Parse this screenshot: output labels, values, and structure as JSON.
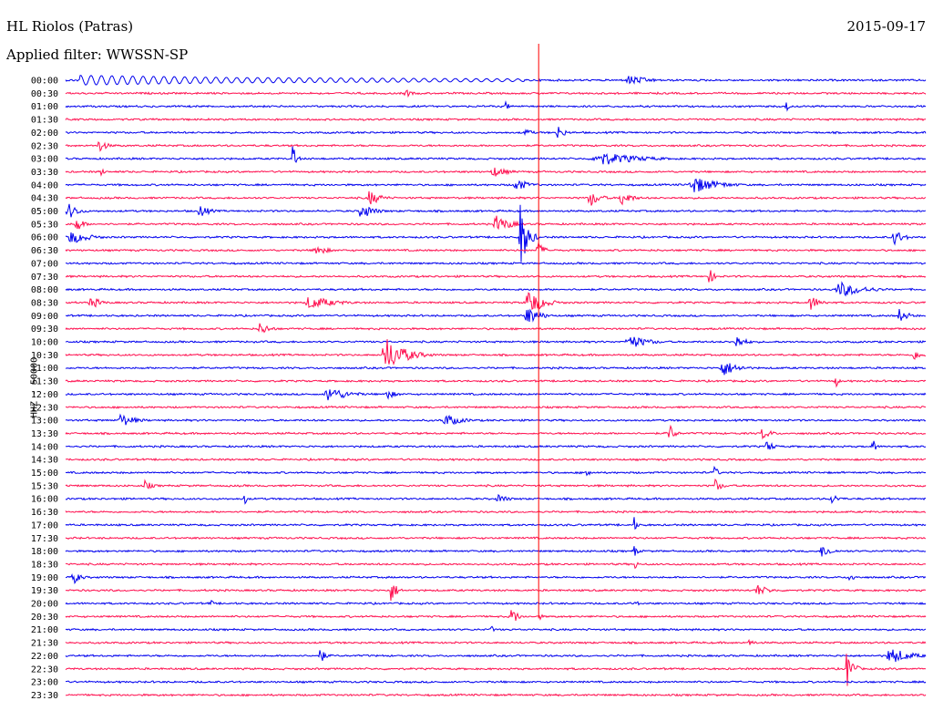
{
  "header": {
    "station": "HL Riolos (Patras)",
    "date": "2015-09-17",
    "filter_label": "Applied filter: WWSSN-SP",
    "channel": "HHZ - 50000"
  },
  "chart_data": {
    "type": "line",
    "title": "HL Riolos (Patras)",
    "subtitle": "Applied filter: WWSSN-SP",
    "ylabel": "HHZ - 50000",
    "xlabel": "",
    "row_labels": [
      "00:00",
      "00:30",
      "01:00",
      "01:30",
      "02:00",
      "02:30",
      "03:00",
      "03:30",
      "04:00",
      "04:30",
      "05:00",
      "05:30",
      "06:00",
      "06:30",
      "07:00",
      "07:30",
      "08:00",
      "08:30",
      "09:00",
      "09:30",
      "10:00",
      "10:30",
      "11:00",
      "11:30",
      "12:00",
      "12:30",
      "13:00",
      "13:30",
      "14:00",
      "14:30",
      "15:00",
      "15:30",
      "16:00",
      "16:30",
      "17:00",
      "17:30",
      "18:00",
      "18:30",
      "19:00",
      "19:30",
      "20:00",
      "20:30",
      "21:00",
      "21:30",
      "22:00",
      "22:30",
      "23:00",
      "23:30"
    ],
    "row_colors": [
      "#0000ee",
      "#ff0f4f"
    ],
    "marker_color": "#ff0000",
    "marker_minute": 16.5,
    "marker_rows": [
      0,
      41
    ],
    "grid": false,
    "legend": "none",
    "events": [
      {
        "row": 0,
        "minute": 0.5,
        "duration": 6,
        "amp": 9,
        "type": "wave"
      },
      {
        "row": 0,
        "minute": 6,
        "duration": 10,
        "amp": 5,
        "type": "wave"
      },
      {
        "row": 0,
        "minute": 5.3,
        "duration": 0.5,
        "amp": 7,
        "type": "burst"
      },
      {
        "row": 0,
        "minute": 19.5,
        "duration": 2,
        "amp": 6,
        "type": "burst"
      },
      {
        "row": 1,
        "minute": 11.8,
        "duration": 0.7,
        "amp": 5,
        "type": "burst"
      },
      {
        "row": 2,
        "minute": 15.3,
        "duration": 0.4,
        "amp": 6,
        "type": "burst"
      },
      {
        "row": 2,
        "minute": 25.1,
        "duration": 0.3,
        "amp": 8,
        "type": "burst"
      },
      {
        "row": 4,
        "minute": 16,
        "duration": 0.5,
        "amp": 8,
        "type": "burst"
      },
      {
        "row": 4,
        "minute": 17.1,
        "duration": 0.7,
        "amp": 9,
        "type": "burst"
      },
      {
        "row": 5,
        "minute": 1.1,
        "duration": 0.8,
        "amp": 8,
        "type": "burst"
      },
      {
        "row": 6,
        "minute": 7.9,
        "duration": 0.3,
        "amp": 26,
        "type": "burst"
      },
      {
        "row": 6,
        "minute": 18.3,
        "duration": 4,
        "amp": 8,
        "type": "burst"
      },
      {
        "row": 7,
        "minute": 1.2,
        "duration": 0.4,
        "amp": 5,
        "type": "burst"
      },
      {
        "row": 7,
        "minute": 14.8,
        "duration": 1.5,
        "amp": 6,
        "type": "burst"
      },
      {
        "row": 8,
        "minute": 15.6,
        "duration": 1.2,
        "amp": 8,
        "type": "burst"
      },
      {
        "row": 8,
        "minute": 21.7,
        "duration": 2.5,
        "amp": 10,
        "type": "burst"
      },
      {
        "row": 9,
        "minute": 10.5,
        "duration": 1.2,
        "amp": 9,
        "type": "burst"
      },
      {
        "row": 9,
        "minute": 18.2,
        "duration": 1,
        "amp": 11,
        "type": "burst"
      },
      {
        "row": 9,
        "minute": 19.3,
        "duration": 1,
        "amp": 10,
        "type": "burst"
      },
      {
        "row": 10,
        "minute": 0,
        "duration": 1,
        "amp": 10,
        "type": "burst"
      },
      {
        "row": 10,
        "minute": 10.2,
        "duration": 1.3,
        "amp": 10,
        "type": "burst"
      },
      {
        "row": 10,
        "minute": 4.6,
        "duration": 1,
        "amp": 8,
        "type": "burst"
      },
      {
        "row": 11,
        "minute": 0.3,
        "duration": 0.7,
        "amp": 10,
        "type": "burst"
      },
      {
        "row": 11,
        "minute": 14.9,
        "duration": 1.5,
        "amp": 10,
        "type": "burst"
      },
      {
        "row": 12,
        "minute": 0,
        "duration": 2,
        "amp": 8,
        "type": "burst"
      },
      {
        "row": 12,
        "minute": 15.8,
        "duration": 0.7,
        "amp": 40,
        "type": "burst"
      },
      {
        "row": 12,
        "minute": 28.8,
        "duration": 1,
        "amp": 10,
        "type": "burst"
      },
      {
        "row": 13,
        "minute": 16.4,
        "duration": 0.7,
        "amp": 10,
        "type": "burst"
      },
      {
        "row": 13,
        "minute": 8.6,
        "duration": 1.2,
        "amp": 7,
        "type": "burst"
      },
      {
        "row": 15,
        "minute": 22.4,
        "duration": 0.5,
        "amp": 10,
        "type": "burst"
      },
      {
        "row": 16,
        "minute": 26.8,
        "duration": 2.5,
        "amp": 9,
        "type": "burst"
      },
      {
        "row": 17,
        "minute": 16,
        "duration": 1.5,
        "amp": 16,
        "type": "burst"
      },
      {
        "row": 17,
        "minute": 0.8,
        "duration": 1,
        "amp": 8,
        "type": "burst"
      },
      {
        "row": 17,
        "minute": 8.3,
        "duration": 2.5,
        "amp": 8,
        "type": "burst"
      },
      {
        "row": 17,
        "minute": 25.9,
        "duration": 1,
        "amp": 9,
        "type": "burst"
      },
      {
        "row": 18,
        "minute": 16,
        "duration": 1.2,
        "amp": 12,
        "type": "burst"
      },
      {
        "row": 18,
        "minute": 29,
        "duration": 1,
        "amp": 8,
        "type": "burst"
      },
      {
        "row": 19,
        "minute": 6.7,
        "duration": 1,
        "amp": 8,
        "type": "burst"
      },
      {
        "row": 20,
        "minute": 19.5,
        "duration": 2,
        "amp": 8,
        "type": "burst"
      },
      {
        "row": 20,
        "minute": 23.3,
        "duration": 1,
        "amp": 8,
        "type": "burst"
      },
      {
        "row": 21,
        "minute": 11,
        "duration": 2,
        "amp": 20,
        "type": "burst"
      },
      {
        "row": 21,
        "minute": 29.5,
        "duration": 1,
        "amp": 6,
        "type": "burst"
      },
      {
        "row": 22,
        "minute": 22.8,
        "duration": 1.5,
        "amp": 10,
        "type": "burst"
      },
      {
        "row": 23,
        "minute": 26.8,
        "duration": 0.3,
        "amp": 12,
        "type": "burst"
      },
      {
        "row": 24,
        "minute": 9,
        "duration": 2,
        "amp": 9,
        "type": "burst"
      },
      {
        "row": 24,
        "minute": 11.1,
        "duration": 1,
        "amp": 6,
        "type": "burst"
      },
      {
        "row": 26,
        "minute": 1.8,
        "duration": 1.5,
        "amp": 8,
        "type": "burst"
      },
      {
        "row": 26,
        "minute": 13.1,
        "duration": 1.8,
        "amp": 7,
        "type": "burst"
      },
      {
        "row": 27,
        "minute": 21,
        "duration": 0.5,
        "amp": 14,
        "type": "burst"
      },
      {
        "row": 27,
        "minute": 24.2,
        "duration": 1,
        "amp": 7,
        "type": "burst"
      },
      {
        "row": 28,
        "minute": 24.4,
        "duration": 0.6,
        "amp": 9,
        "type": "burst"
      },
      {
        "row": 28,
        "minute": 28.1,
        "duration": 0.3,
        "amp": 14,
        "type": "burst"
      },
      {
        "row": 30,
        "minute": 18.1,
        "duration": 0.5,
        "amp": 7,
        "type": "burst"
      },
      {
        "row": 30,
        "minute": 22.6,
        "duration": 0.3,
        "amp": 12,
        "type": "burst"
      },
      {
        "row": 31,
        "minute": 2.7,
        "duration": 0.8,
        "amp": 6,
        "type": "burst"
      },
      {
        "row": 31,
        "minute": 22.6,
        "duration": 0.7,
        "amp": 8,
        "type": "burst"
      },
      {
        "row": 32,
        "minute": 6.2,
        "duration": 0.3,
        "amp": 8,
        "type": "burst"
      },
      {
        "row": 32,
        "minute": 15,
        "duration": 1,
        "amp": 6,
        "type": "burst"
      },
      {
        "row": 32,
        "minute": 26.6,
        "duration": 1,
        "amp": 6,
        "type": "burst"
      },
      {
        "row": 34,
        "minute": 19.8,
        "duration": 0.3,
        "amp": 10,
        "type": "burst"
      },
      {
        "row": 36,
        "minute": 19.8,
        "duration": 0.3,
        "amp": 10,
        "type": "burst"
      },
      {
        "row": 36,
        "minute": 26.3,
        "duration": 1,
        "amp": 8,
        "type": "burst"
      },
      {
        "row": 37,
        "minute": 19.8,
        "duration": 0.3,
        "amp": 9,
        "type": "burst"
      },
      {
        "row": 38,
        "minute": 0.2,
        "duration": 0.8,
        "amp": 8,
        "type": "burst"
      },
      {
        "row": 38,
        "minute": 27.3,
        "duration": 0.5,
        "amp": 7,
        "type": "burst"
      },
      {
        "row": 39,
        "minute": 11.3,
        "duration": 0.6,
        "amp": 14,
        "type": "burst"
      },
      {
        "row": 39,
        "minute": 24,
        "duration": 1.3,
        "amp": 7,
        "type": "burst"
      },
      {
        "row": 40,
        "minute": 19.8,
        "duration": 0.3,
        "amp": 9,
        "type": "burst"
      },
      {
        "row": 40,
        "minute": 5,
        "duration": 0.4,
        "amp": 5,
        "type": "burst"
      },
      {
        "row": 41,
        "minute": 15.5,
        "duration": 0.6,
        "amp": 12,
        "type": "burst"
      },
      {
        "row": 41,
        "minute": 16.5,
        "duration": 0.3,
        "amp": 5,
        "type": "burst"
      },
      {
        "row": 42,
        "minute": 14.8,
        "duration": 0.3,
        "amp": 6,
        "type": "burst"
      },
      {
        "row": 43,
        "minute": 23.8,
        "duration": 0.5,
        "amp": 6,
        "type": "burst"
      },
      {
        "row": 44,
        "minute": 8.8,
        "duration": 0.6,
        "amp": 10,
        "type": "burst"
      },
      {
        "row": 44,
        "minute": 28.6,
        "duration": 2,
        "amp": 10,
        "type": "burst"
      },
      {
        "row": 45,
        "minute": 27.2,
        "duration": 0.6,
        "amp": 24,
        "type": "burst"
      }
    ]
  }
}
